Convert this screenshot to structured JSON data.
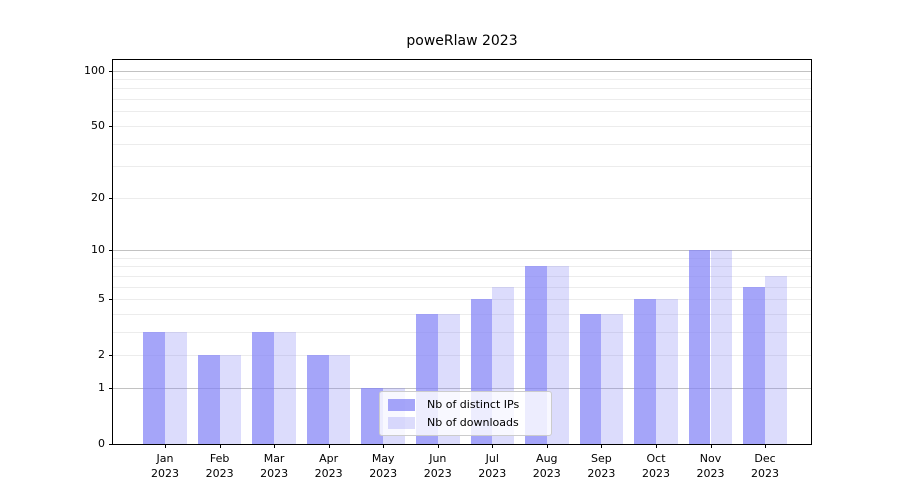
{
  "title": "poweRlaw 2023",
  "colors": {
    "background": "#ffffff",
    "bar_base": "#8282f6",
    "series_alphas": [
      0.72,
      0.28
    ],
    "grid_major": "#c2c2c2",
    "grid_minor": "#ececec",
    "spine": "#000000",
    "legend_border": "#cccccc"
  },
  "chart_data": {
    "type": "bar",
    "title": "poweRlaw 2023",
    "categories": [
      "Jan 2023",
      "Feb 2023",
      "Mar 2023",
      "Apr 2023",
      "May 2023",
      "Jun 2023",
      "Jul 2023",
      "Aug 2023",
      "Sep 2023",
      "Oct 2023",
      "Nov 2023",
      "Dec 2023"
    ],
    "series": [
      {
        "name": "Nb of distinct IPs",
        "values": [
          3,
          2,
          3,
          2,
          1,
          4,
          5,
          8,
          4,
          5,
          10,
          6
        ]
      },
      {
        "name": "Nb of downloads",
        "values": [
          3,
          2,
          3,
          2,
          1,
          4,
          6,
          8,
          4,
          5,
          10,
          7
        ]
      }
    ],
    "xlabel": "",
    "ylabel": "",
    "yscale": "log1p",
    "ylim": [
      0,
      114
    ],
    "yticks": [
      0,
      1,
      2,
      5,
      10,
      20,
      50,
      100
    ],
    "grid_major_values": [
      1,
      10,
      100
    ],
    "grid_minor_values": [
      2,
      3,
      4,
      5,
      6,
      7,
      8,
      9,
      20,
      30,
      40,
      50,
      60,
      70,
      80,
      90
    ],
    "grid": "horizontal major+minor",
    "legend_position": "lower center"
  },
  "legend": {
    "items": [
      {
        "label": "Nb of distinct IPs"
      },
      {
        "label": "Nb of downloads"
      }
    ]
  }
}
